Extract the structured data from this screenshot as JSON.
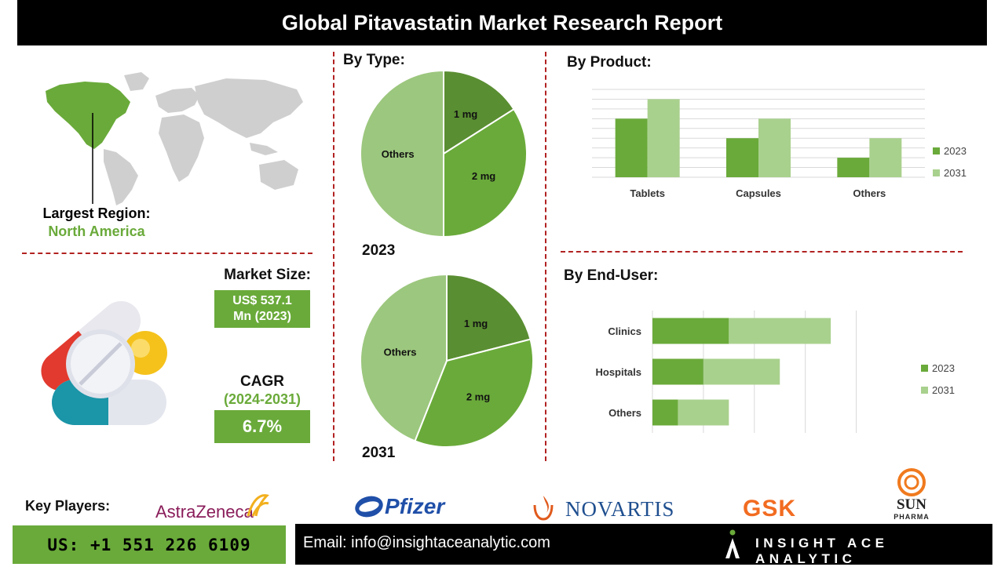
{
  "header": {
    "title": "Global Pitavastatin Market Research Report"
  },
  "region": {
    "label": "Largest Region:",
    "value": "North America"
  },
  "market_size": {
    "label": "Market Size:",
    "value_line1": "US$ 537.1",
    "value_line2": "Mn (2023)"
  },
  "cagr": {
    "label": "CAGR",
    "period": "(2024-2031)",
    "value": "6.7%"
  },
  "by_type": {
    "label": "By Type:"
  },
  "by_product": {
    "label": "By Product:"
  },
  "by_end_user": {
    "label": "By End-User:"
  },
  "key_players": {
    "label": "Key Players:",
    "logos": [
      "AstraZeneca",
      "Pfizer",
      "NOVARTIS",
      "GSK",
      "SUN",
      "PHARMA"
    ]
  },
  "footer": {
    "phone": "US: +1 551 226 6109",
    "email": "Email: info@insightaceanalytic.com",
    "brand": "INSIGHT ACE ANALYTIC"
  },
  "colors": {
    "dark_green": "#5a8e32",
    "mid_green": "#6aaa3a",
    "light_green": "#9cc77e",
    "pale_green": "#a9d18e",
    "region_green": "#6aaa3a"
  },
  "chart_data": [
    {
      "type": "pie",
      "title": "2023",
      "labels": [
        "1 mg",
        "2 mg",
        "Others"
      ],
      "values": [
        16,
        34,
        50
      ]
    },
    {
      "type": "pie",
      "title": "2031",
      "labels": [
        "1 mg",
        "2 mg",
        "Others"
      ],
      "values": [
        21,
        35,
        44
      ]
    },
    {
      "type": "bar",
      "orientation": "vertical",
      "categories": [
        "Tablets",
        "Capsules",
        "Others"
      ],
      "series": [
        {
          "name": "2023",
          "values": [
            3,
            2,
            1
          ]
        },
        {
          "name": "2031",
          "values": [
            4,
            3,
            2
          ]
        }
      ],
      "ylim": [
        0,
        4.5
      ],
      "grid": true,
      "legend": "right"
    },
    {
      "type": "bar",
      "orientation": "horizontal",
      "stacked": true,
      "categories": [
        "Clinics",
        "Hospitals",
        "Others"
      ],
      "series": [
        {
          "name": "2023",
          "values": [
            3,
            2,
            1
          ]
        },
        {
          "name": "2031",
          "values": [
            4,
            3,
            2
          ]
        }
      ],
      "xlim": [
        0,
        9
      ],
      "grid": true,
      "legend": "right"
    }
  ]
}
